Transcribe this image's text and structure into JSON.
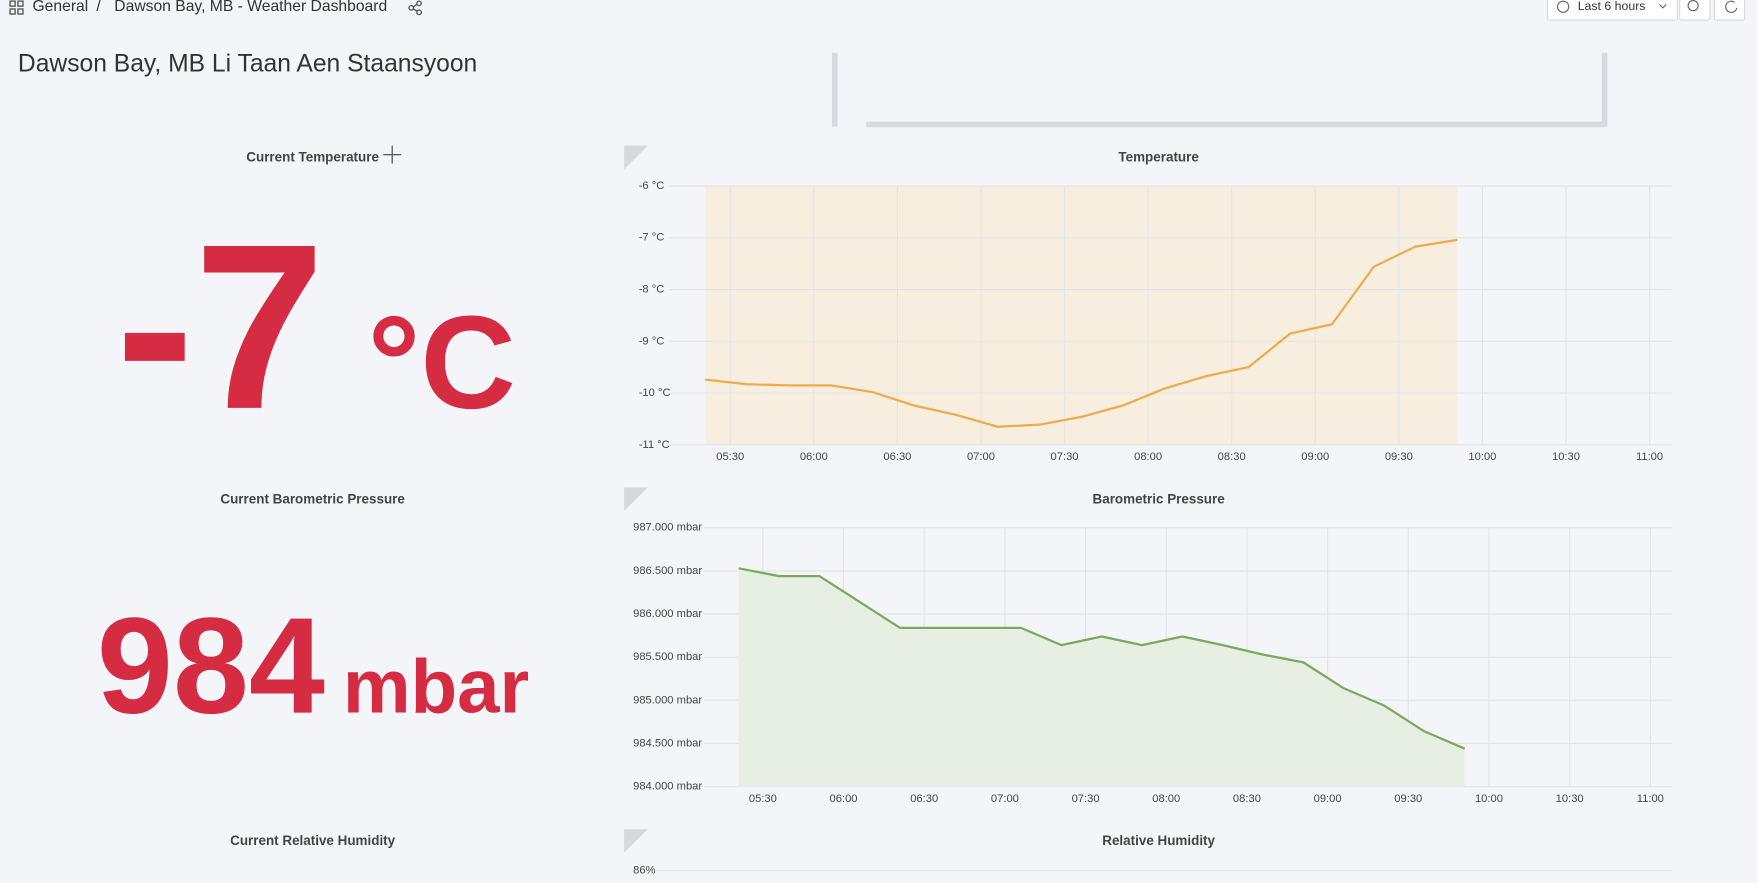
{
  "breadcrumb": {
    "folder": "General",
    "separator": "/",
    "dashboard": "Dawson Bay, MB - Weather Dashboard"
  },
  "time_picker": {
    "label": "Last 6 hours"
  },
  "dashboard_title": "Dawson Bay, MB Li Taan Aen Staansyoon",
  "stat_panels": [
    {
      "title": "Current Temperature",
      "value": -7,
      "unit": "°C"
    },
    {
      "title": "Current Barometric Pressure",
      "value": 984,
      "unit": "mbar"
    },
    {
      "title": "Current Relative Humidity"
    }
  ],
  "chart_data": [
    {
      "type": "line",
      "title": "Temperature",
      "fill": "region",
      "color": "#eeab4c",
      "fill_color": "#f8eee0",
      "x": [
        "05:21",
        "05:36",
        "05:51",
        "06:06",
        "06:21",
        "06:36",
        "06:51",
        "07:06",
        "07:21",
        "07:36",
        "07:51",
        "08:06",
        "08:21",
        "08:36",
        "08:51",
        "09:06",
        "09:21",
        "09:36",
        "09:51"
      ],
      "values": [
        -9.74,
        -9.83,
        -9.85,
        -9.85,
        -9.98,
        -10.24,
        -10.42,
        -10.65,
        -10.61,
        -10.46,
        -10.24,
        -9.91,
        -9.67,
        -9.5,
        -8.85,
        -8.67,
        -7.56,
        -7.17,
        -7.04
      ],
      "xlim": [
        "05:08",
        "11:08"
      ],
      "xticks": [
        "05:30",
        "06:00",
        "06:30",
        "07:00",
        "07:30",
        "08:00",
        "08:30",
        "09:00",
        "09:30",
        "10:00",
        "10:30",
        "11:00"
      ],
      "ylim": [
        -11,
        -6
      ],
      "yticks": [
        {
          "value": -6,
          "label": "-6 °C"
        },
        {
          "value": -7,
          "label": "-7 °C"
        },
        {
          "value": -8,
          "label": "-8 °C"
        },
        {
          "value": -9,
          "label": "-9 °C"
        },
        {
          "value": -10,
          "label": "-10 °C"
        },
        {
          "value": -11,
          "label": "-11 °C"
        }
      ],
      "grid": true
    },
    {
      "type": "line",
      "title": "Barometric Pressure",
      "fill": "area",
      "color": "#7aaa5e",
      "fill_color": "#e7efe3",
      "x": [
        "05:21",
        "05:36",
        "05:51",
        "06:06",
        "06:21",
        "06:36",
        "06:51",
        "07:06",
        "07:21",
        "07:36",
        "07:51",
        "08:06",
        "08:21",
        "08:36",
        "08:51",
        "09:06",
        "09:21",
        "09:36",
        "09:51"
      ],
      "values": [
        986.53,
        986.44,
        986.44,
        986.14,
        985.84,
        985.84,
        985.84,
        985.84,
        985.64,
        985.74,
        985.64,
        985.74,
        985.64,
        985.53,
        985.44,
        985.14,
        984.94,
        984.64,
        984.44
      ],
      "xlim": [
        "05:08",
        "11:08"
      ],
      "xticks": [
        "05:30",
        "06:00",
        "06:30",
        "07:00",
        "07:30",
        "08:00",
        "08:30",
        "09:00",
        "09:30",
        "10:00",
        "10:30",
        "11:00"
      ],
      "ylim": [
        984,
        987
      ],
      "yticks": [
        {
          "value": 987,
          "label": "987.000 mbar"
        },
        {
          "value": 986.5,
          "label": "986.500 mbar"
        },
        {
          "value": 986,
          "label": "986.000 mbar"
        },
        {
          "value": 985.5,
          "label": "985.500 mbar"
        },
        {
          "value": 985,
          "label": "985.000 mbar"
        },
        {
          "value": 984.5,
          "label": "984.500 mbar"
        },
        {
          "value": 984,
          "label": "984.000 mbar"
        }
      ],
      "grid": true
    },
    {
      "type": "line",
      "title": "Relative Humidity",
      "yticks": [
        {
          "value": 86,
          "label": "86%"
        }
      ],
      "grid": true
    }
  ]
}
